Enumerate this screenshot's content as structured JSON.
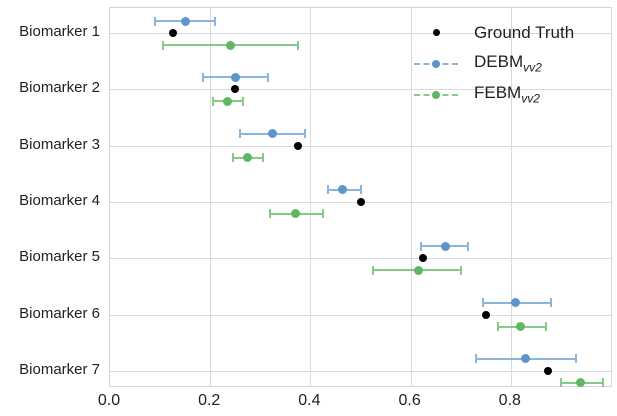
{
  "chart_data": {
    "type": "scatter",
    "subtype": "horizontal-errorbar",
    "title": "",
    "xlabel": "",
    "ylabel": "",
    "categories": [
      "Biomarker 1",
      "Biomarker 2",
      "Biomarker 3",
      "Biomarker 4",
      "Biomarker 5",
      "Biomarker 6",
      "Biomarker 7"
    ],
    "x_ticks": [
      "0.0",
      "0.2",
      "0.4",
      "0.6",
      "0.8"
    ],
    "x_tick_values": [
      0.0,
      0.2,
      0.4,
      0.6,
      0.8
    ],
    "xlim": [
      0.0,
      1.0
    ],
    "grid": true,
    "legend_position": "upper right",
    "colors": {
      "ground_truth": "#000000",
      "debm_dot": "#5d94cc",
      "debm_line": "#8ab5dd",
      "febm_dot": "#5eb763",
      "febm_line": "#83cb87",
      "gridline": "#d8dbde",
      "text": "#1f1f1f"
    },
    "series": [
      {
        "name": "Ground Truth",
        "legend_base": "Ground Truth",
        "legend_sub": "",
        "marker": "dot",
        "has_error_bars": false,
        "values": [
          0.125,
          0.25,
          0.375,
          0.5,
          0.625,
          0.75,
          0.875
        ]
      },
      {
        "name": "DEBM_vv2",
        "legend_base": "DEBM",
        "legend_sub": "vv2",
        "marker": "dot-with-dashed-errorbar",
        "has_error_bars": true,
        "values": [
          0.15,
          0.25,
          0.325,
          0.465,
          0.67,
          0.81,
          0.83
        ],
        "err_low": [
          0.09,
          0.185,
          0.26,
          0.435,
          0.62,
          0.745,
          0.73
        ],
        "err_high": [
          0.21,
          0.315,
          0.39,
          0.5,
          0.715,
          0.88,
          0.93
        ]
      },
      {
        "name": "FEBM_vv2",
        "legend_base": "FEBM",
        "legend_sub": "vv2",
        "marker": "dot-with-dashed-errorbar",
        "has_error_bars": true,
        "values": [
          0.24,
          0.235,
          0.275,
          0.37,
          0.615,
          0.82,
          0.94
        ],
        "err_low": [
          0.105,
          0.205,
          0.245,
          0.32,
          0.525,
          0.775,
          0.9
        ],
        "err_high": [
          0.375,
          0.265,
          0.305,
          0.425,
          0.7,
          0.87,
          0.985
        ]
      }
    ]
  }
}
